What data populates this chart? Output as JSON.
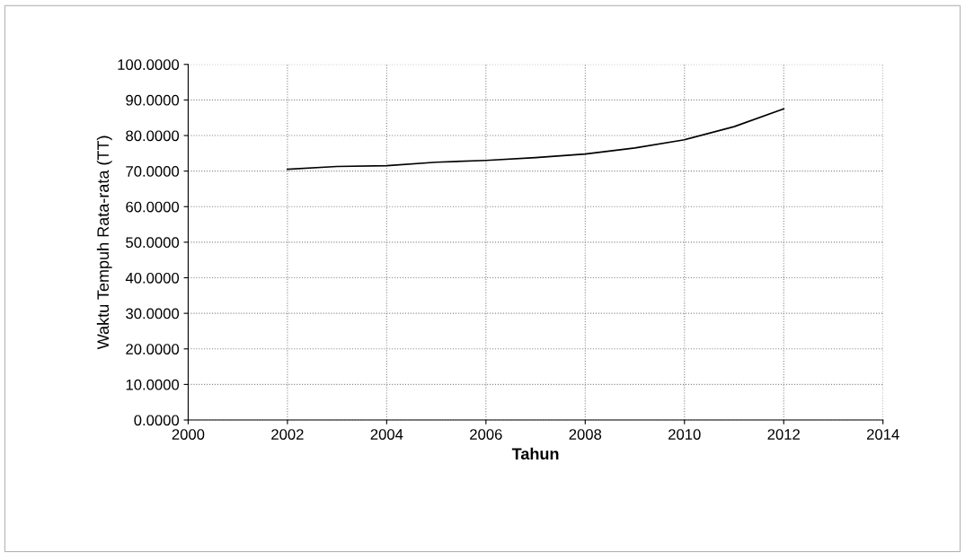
{
  "chart_data": {
    "type": "line",
    "xlabel": "Tahun",
    "ylabel": "Waktu Tempuh Rata-rata (TT)",
    "x": [
      2002,
      2003,
      2004,
      2005,
      2006,
      2007,
      2008,
      2009,
      2010,
      2011,
      2012
    ],
    "series": [
      {
        "color": "#000000",
        "values": [
          70.5,
          71.3,
          71.5,
          72.5,
          73.0,
          73.8,
          74.8,
          76.5,
          78.8,
          82.5,
          87.5
        ]
      }
    ],
    "xlim": [
      2000,
      2014
    ],
    "xticks": [
      2000,
      2002,
      2004,
      2006,
      2008,
      2010,
      2012,
      2014
    ],
    "ylim": [
      0,
      100
    ],
    "yticks": [
      {
        "value": 0,
        "label": "0.0000"
      },
      {
        "value": 10,
        "label": "10.0000"
      },
      {
        "value": 20,
        "label": "20.0000"
      },
      {
        "value": 30,
        "label": "30.0000"
      },
      {
        "value": 40,
        "label": "40.0000"
      },
      {
        "value": 50,
        "label": "50.0000"
      },
      {
        "value": 60,
        "label": "60.0000"
      },
      {
        "value": 70,
        "label": "70.0000"
      },
      {
        "value": 80,
        "label": "80.0000"
      },
      {
        "value": 90,
        "label": "90.0000"
      },
      {
        "value": 100,
        "label": "100.0000"
      }
    ],
    "grid": true,
    "marker": "none",
    "line_style": "solid"
  }
}
